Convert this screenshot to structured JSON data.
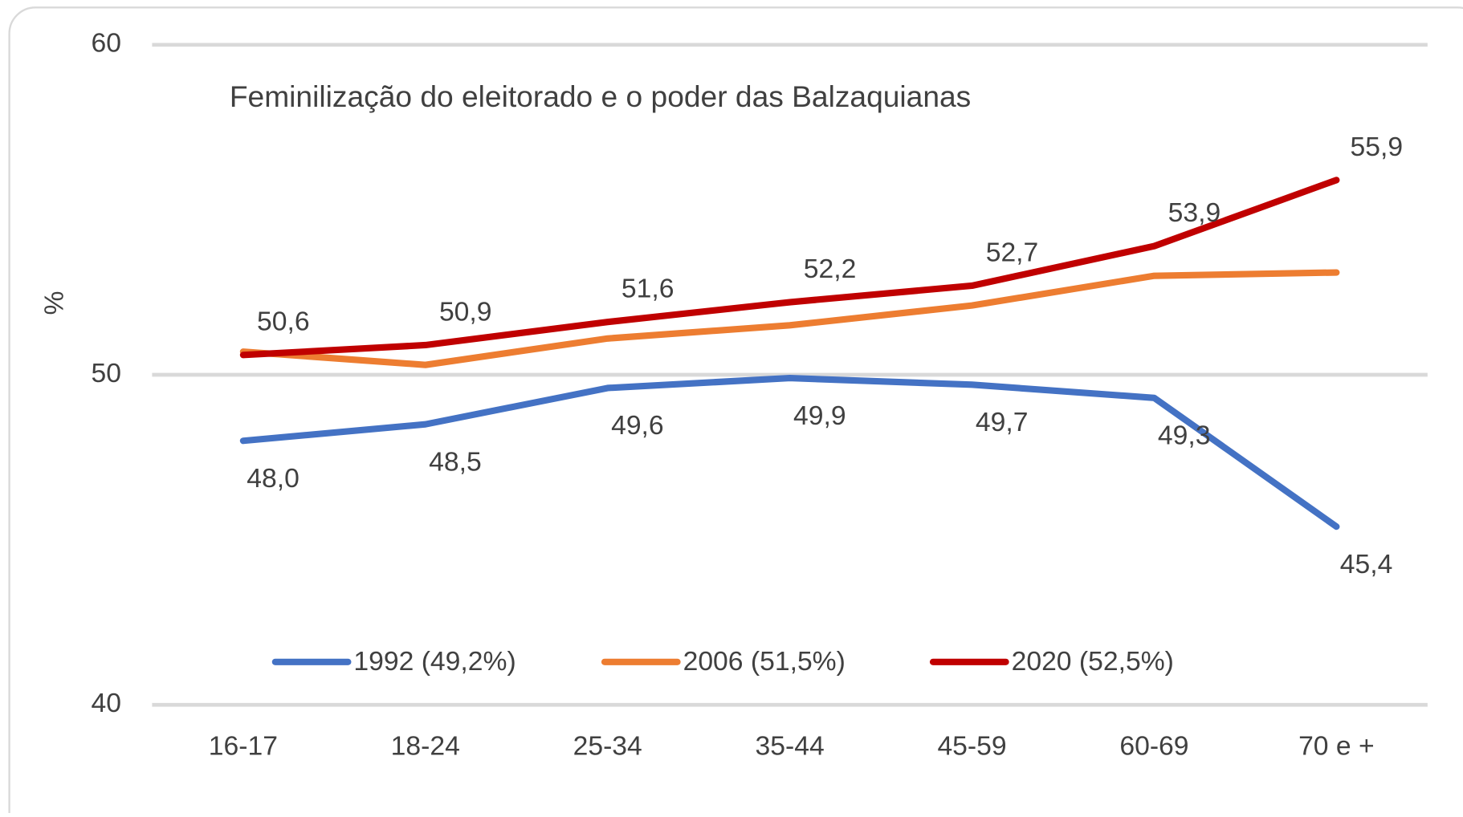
{
  "chart_data": {
    "type": "line",
    "title": "Feminilização do eleitorado e o poder das Balzaquianas",
    "y_label": "%",
    "categories": [
      "16-17",
      "18-24",
      "25-34",
      "35-44",
      "45-59",
      "60-69",
      "70 e +"
    ],
    "series": [
      {
        "name": "1992 (49,2%)",
        "color": "#4472c4",
        "values": [
          48.0,
          48.5,
          49.6,
          49.9,
          49.7,
          49.3,
          45.4
        ],
        "value_labels": [
          "48,0",
          "48,5",
          "49,6",
          "49,9",
          "49,7",
          "49,3",
          "45,4"
        ]
      },
      {
        "name": "2006 (51,5%)",
        "color": "#ed7d31",
        "values": [
          50.7,
          50.3,
          51.1,
          51.5,
          52.1,
          53.0,
          53.1
        ]
      },
      {
        "name": "2020 (52,5%)",
        "color": "#c00000",
        "values": [
          50.6,
          50.9,
          51.6,
          52.2,
          52.7,
          53.9,
          55.9
        ],
        "value_labels": [
          "50,6",
          "50,9",
          "51,6",
          "52,2",
          "52,7",
          "53,9",
          "55,9"
        ]
      }
    ],
    "ylim": [
      40,
      60
    ],
    "yticks": [
      40,
      50,
      60
    ],
    "grid": true,
    "legend": "bottom"
  }
}
